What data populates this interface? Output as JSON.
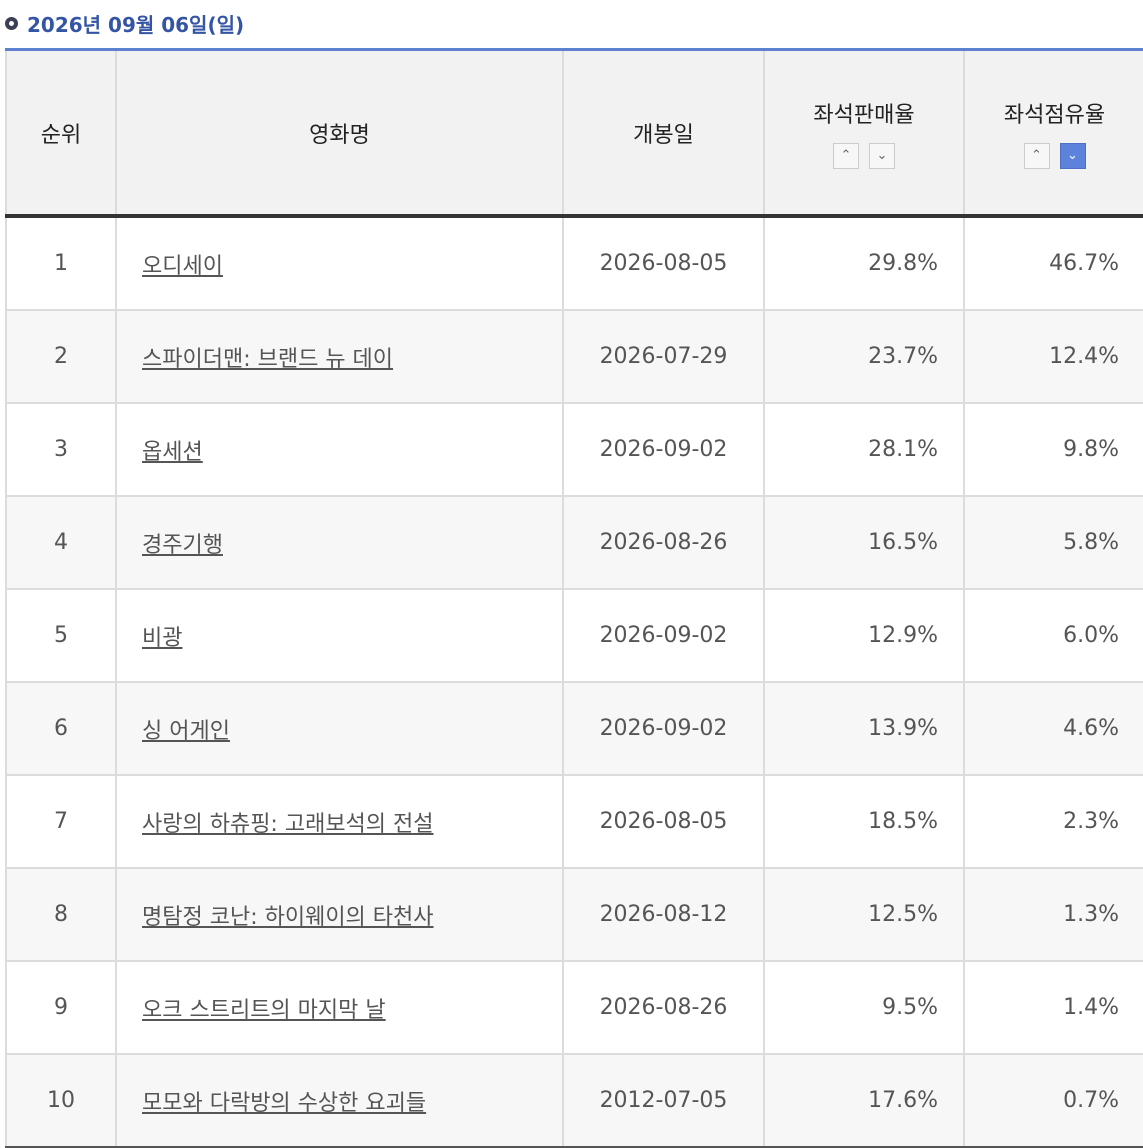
{
  "header": {
    "title": "2026년 09월 06일(일)"
  },
  "table": {
    "columns": [
      "순위",
      "영화명",
      "개봉일",
      "좌석판매율",
      "좌석점유율"
    ],
    "rows": [
      [
        "1",
        "오디세이",
        "2026-08-05",
        "29.8%",
        "46.7%"
      ],
      [
        "2",
        "스파이더맨: 브랜드 뉴 데이",
        "2026-07-29",
        "23.7%",
        "12.4%"
      ],
      [
        "3",
        "옵세션",
        "2026-09-02",
        "28.1%",
        "9.8%"
      ],
      [
        "4",
        "경주기행",
        "2026-08-26",
        "16.5%",
        "5.8%"
      ],
      [
        "5",
        "비광",
        "2026-09-02",
        "12.9%",
        "6.0%"
      ],
      [
        "6",
        "싱 어게인",
        "2026-09-02",
        "13.9%",
        "4.6%"
      ],
      [
        "7",
        "사랑의 하츄핑: 고래보석의 전설",
        "2026-08-05",
        "18.5%",
        "2.3%"
      ],
      [
        "8",
        "명탐정 코난: 하이웨이의 타천사",
        "2026-08-12",
        "12.5%",
        "1.3%"
      ],
      [
        "9",
        "오크 스트리트의 마지막 날",
        "2026-08-26",
        "9.5%",
        "1.4%"
      ],
      [
        "10",
        "모모와 다락방의 수상한 요괴들",
        "2012-07-05",
        "17.6%",
        "0.7%"
      ]
    ]
  }
}
